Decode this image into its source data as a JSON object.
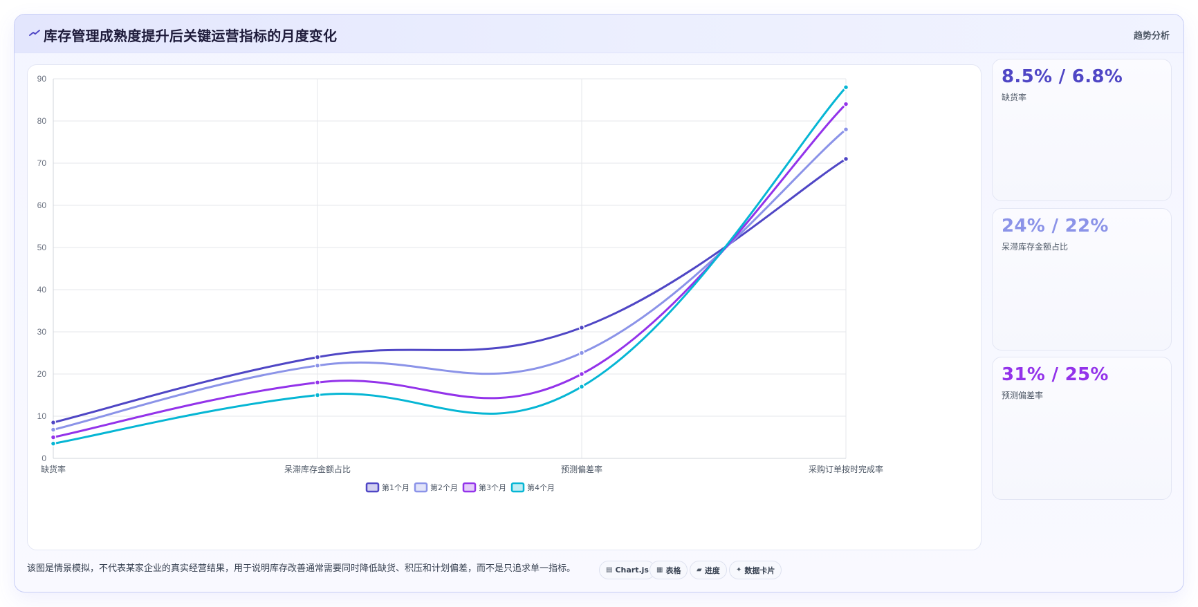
{
  "header": {
    "icon": "trend-line-icon",
    "title": "库存管理成熟度提升后关键运营指标的月度变化",
    "tag": "趋势分析"
  },
  "chart_data": {
    "type": "line",
    "categories": [
      "缺货率",
      "呆滞库存金额占比",
      "预测偏差率",
      "采购订单按时完成率"
    ],
    "ylim": [
      0,
      90
    ],
    "yticks": [
      0,
      10,
      20,
      30,
      40,
      50,
      60,
      70,
      80,
      90
    ],
    "grid": true,
    "legend_position": "bottom",
    "series": [
      {
        "name": "第1个月",
        "color": "#4f46c5",
        "values": [
          8.5,
          24,
          31,
          71
        ]
      },
      {
        "name": "第2个月",
        "color": "#8b93e8",
        "values": [
          6.8,
          22,
          25,
          78
        ]
      },
      {
        "name": "第3个月",
        "color": "#9333ea",
        "values": [
          5,
          18,
          20,
          84
        ]
      },
      {
        "name": "第4个月",
        "color": "#06b6d4",
        "values": [
          3.5,
          15,
          17,
          88
        ]
      }
    ]
  },
  "stats": [
    {
      "value": "8.5% / 6.8%",
      "label": "缺货率",
      "color": "#4f46c5"
    },
    {
      "value": "24% / 22%",
      "label": "呆滞库存金额占比",
      "color": "#8b93e8"
    },
    {
      "value": "31% / 25%",
      "label": "预测偏差率",
      "color": "#9333ea"
    }
  ],
  "footnote": "该图是情景模拟，不代表某家企业的真实经营结果，用于说明库存改善通常需要同时降低缺货、积压和计划偏差，而不是只追求单一指标。",
  "chips": [
    {
      "icon": "chart-icon",
      "glyph": "▤",
      "label": "Chart.js"
    },
    {
      "icon": "table-icon",
      "glyph": "▦",
      "label": "表格"
    },
    {
      "icon": "progress-icon",
      "glyph": "▰",
      "label": "进度"
    },
    {
      "icon": "sparkle-icon",
      "glyph": "✦",
      "label": "数据卡片"
    }
  ]
}
